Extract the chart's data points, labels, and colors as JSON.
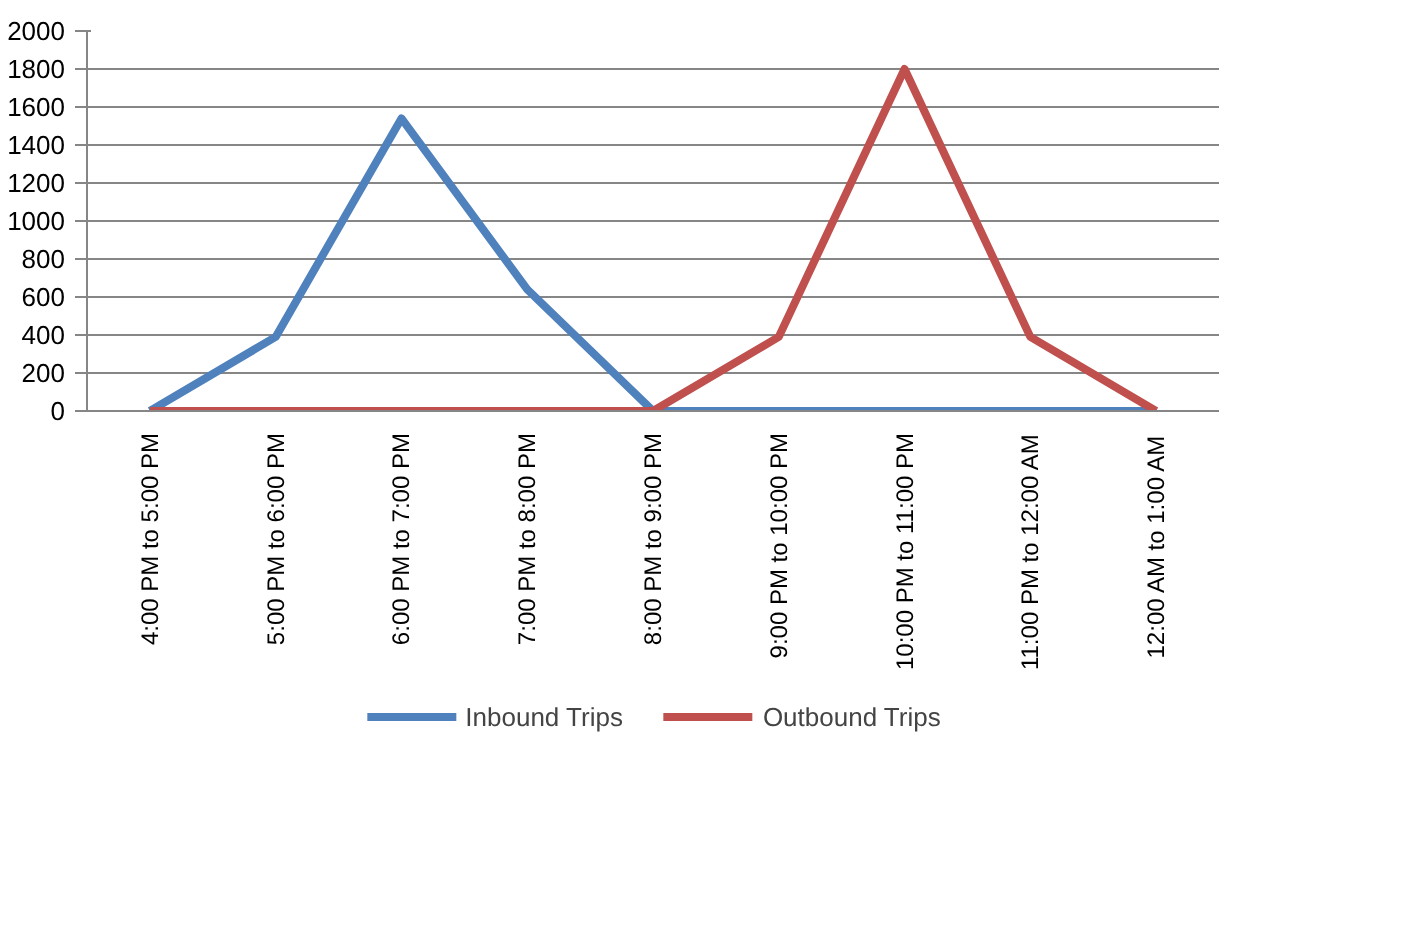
{
  "chart_data": {
    "type": "line",
    "categories": [
      "4:00 PM to 5:00 PM",
      "5:00 PM to 6:00 PM",
      "6:00 PM to 7:00 PM",
      "7:00 PM to 8:00 PM",
      "8:00 PM to 9:00 PM",
      "9:00 PM to 10:00 PM",
      "10:00 PM to 11:00 PM",
      "11:00 PM to 12:00 AM",
      "12:00 AM to 1:00 AM"
    ],
    "series": [
      {
        "name": "Inbound Trips",
        "color": "#4f81bd",
        "values": [
          0,
          390,
          1540,
          640,
          0,
          0,
          0,
          0,
          0
        ]
      },
      {
        "name": "Outbound Trips",
        "color": "#c0504d",
        "values": [
          0,
          0,
          0,
          0,
          0,
          390,
          1800,
          390,
          0
        ]
      }
    ],
    "ylim": [
      0,
      2000
    ],
    "yticks": [
      0,
      200,
      400,
      600,
      800,
      1000,
      1200,
      1400,
      1600,
      1800,
      2000
    ],
    "grid": "y",
    "legend": "bottom",
    "marker": "none",
    "line_style": "solid"
  }
}
